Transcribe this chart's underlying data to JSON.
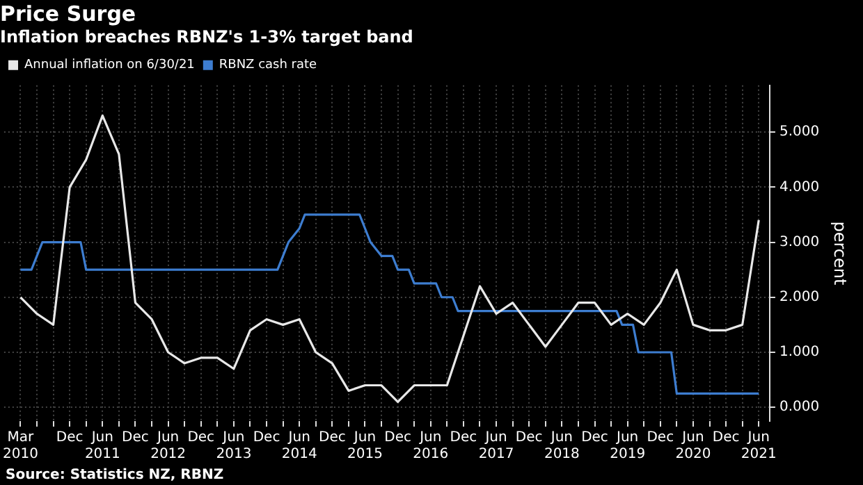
{
  "chart_data": {
    "type": "line",
    "title": "Price Surge",
    "subtitle": "Inflation breaches RBNZ's 1-3% target band",
    "ylabel": "percent",
    "annotations": [
      "Source: Statistics NZ, RBNZ"
    ],
    "x": [
      "2010-03",
      "2010-06",
      "2010-09",
      "2010-12",
      "2011-03",
      "2011-06",
      "2011-09",
      "2011-12",
      "2012-03",
      "2012-06",
      "2012-09",
      "2012-12",
      "2013-03",
      "2013-06",
      "2013-09",
      "2013-12",
      "2014-03",
      "2014-06",
      "2014-09",
      "2014-12",
      "2015-03",
      "2015-06",
      "2015-09",
      "2015-12",
      "2016-03",
      "2016-06",
      "2016-09",
      "2016-12",
      "2017-03",
      "2017-06",
      "2017-09",
      "2017-12",
      "2018-03",
      "2018-06",
      "2018-09",
      "2018-12",
      "2019-03",
      "2019-06",
      "2019-09",
      "2019-12",
      "2020-03",
      "2020-06",
      "2020-09",
      "2020-12",
      "2021-03",
      "2021-06"
    ],
    "series": [
      {
        "name": "Annual inflation on 6/30/21",
        "color": "#e8e8e8",
        "values": [
          2.0,
          1.7,
          1.5,
          4.0,
          4.5,
          5.3,
          4.6,
          1.9,
          1.6,
          1.0,
          0.8,
          0.9,
          0.9,
          0.7,
          1.4,
          1.6,
          1.5,
          1.6,
          1.0,
          0.8,
          0.3,
          0.4,
          0.4,
          0.1,
          0.4,
          0.4,
          0.4,
          1.3,
          2.2,
          1.7,
          1.9,
          1.5,
          1.1,
          1.5,
          1.9,
          1.9,
          1.5,
          1.7,
          1.5,
          1.9,
          2.5,
          1.5,
          1.4,
          1.4,
          1.5,
          3.4
        ]
      },
      {
        "name": "RBNZ cash rate",
        "color": "#3d7dd0",
        "x": [
          "2010-03",
          "2010-05",
          "2010-06",
          "2010-07",
          "2011-02",
          "2011-03",
          "2014-02",
          "2014-03",
          "2014-04",
          "2014-06",
          "2014-07",
          "2015-05",
          "2015-06",
          "2015-07",
          "2015-09",
          "2015-11",
          "2015-12",
          "2016-02",
          "2016-03",
          "2016-07",
          "2016-08",
          "2016-10",
          "2016-11",
          "2019-04",
          "2019-05",
          "2019-07",
          "2019-08",
          "2020-02",
          "2020-03",
          "2021-06"
        ],
        "values": [
          2.5,
          2.5,
          2.75,
          3.0,
          3.0,
          2.5,
          2.5,
          2.75,
          3.0,
          3.25,
          3.5,
          3.5,
          3.25,
          3.0,
          2.75,
          2.75,
          2.5,
          2.5,
          2.25,
          2.25,
          2.0,
          2.0,
          1.75,
          1.75,
          1.5,
          1.5,
          1.0,
          1.0,
          0.25,
          0.25
        ]
      }
    ],
    "xlim": [
      "2009-12",
      "2021-08"
    ],
    "xticks": [
      {
        "value": "2010-03",
        "label": "Mar\n2010"
      },
      {
        "value": "2010-06",
        "label": null
      },
      {
        "value": "2010-09",
        "label": null
      },
      {
        "value": "2010-12",
        "label": "Dec"
      },
      {
        "value": "2011-03",
        "label": null
      },
      {
        "value": "2011-06",
        "label": "Jun\n2011"
      },
      {
        "value": "2011-09",
        "label": null
      },
      {
        "value": "2011-12",
        "label": "Dec"
      },
      {
        "value": "2012-03",
        "label": null
      },
      {
        "value": "2012-06",
        "label": "Jun\n2012"
      },
      {
        "value": "2012-09",
        "label": null
      },
      {
        "value": "2012-12",
        "label": "Dec"
      },
      {
        "value": "2013-03",
        "label": null
      },
      {
        "value": "2013-06",
        "label": "Jun\n2013"
      },
      {
        "value": "2013-09",
        "label": null
      },
      {
        "value": "2013-12",
        "label": "Dec"
      },
      {
        "value": "2014-03",
        "label": null
      },
      {
        "value": "2014-06",
        "label": "Jun\n2014"
      },
      {
        "value": "2014-09",
        "label": null
      },
      {
        "value": "2014-12",
        "label": "Dec"
      },
      {
        "value": "2015-03",
        "label": null
      },
      {
        "value": "2015-06",
        "label": "Jun\n2015"
      },
      {
        "value": "2015-09",
        "label": null
      },
      {
        "value": "2015-12",
        "label": "Dec"
      },
      {
        "value": "2016-03",
        "label": null
      },
      {
        "value": "2016-06",
        "label": "Jun\n2016"
      },
      {
        "value": "2016-09",
        "label": null
      },
      {
        "value": "2016-12",
        "label": "Dec"
      },
      {
        "value": "2017-03",
        "label": null
      },
      {
        "value": "2017-06",
        "label": "Jun\n2017"
      },
      {
        "value": "2017-09",
        "label": null
      },
      {
        "value": "2017-12",
        "label": "Dec"
      },
      {
        "value": "2018-03",
        "label": null
      },
      {
        "value": "2018-06",
        "label": "Jun\n2018"
      },
      {
        "value": "2018-09",
        "label": null
      },
      {
        "value": "2018-12",
        "label": "Dec"
      },
      {
        "value": "2019-03",
        "label": null
      },
      {
        "value": "2019-06",
        "label": "Jun\n2019"
      },
      {
        "value": "2019-09",
        "label": null
      },
      {
        "value": "2019-12",
        "label": "Dec"
      },
      {
        "value": "2020-03",
        "label": null
      },
      {
        "value": "2020-06",
        "label": "Jun\n2020"
      },
      {
        "value": "2020-09",
        "label": null
      },
      {
        "value": "2020-12",
        "label": "Dec"
      },
      {
        "value": "2021-03",
        "label": null
      },
      {
        "value": "2021-06",
        "label": "Jun\n2021"
      }
    ],
    "ylim": [
      -0.25,
      5.85
    ],
    "yticks": [
      {
        "value": 0,
        "label": "0.000"
      },
      {
        "value": 1,
        "label": "1.000"
      },
      {
        "value": 2,
        "label": "2.000"
      },
      {
        "value": 3,
        "label": "3.000"
      },
      {
        "value": 4,
        "label": "4.000"
      },
      {
        "value": 5,
        "label": "5.000"
      }
    ],
    "grid": true,
    "legend": "top left",
    "line_style": "solid"
  }
}
